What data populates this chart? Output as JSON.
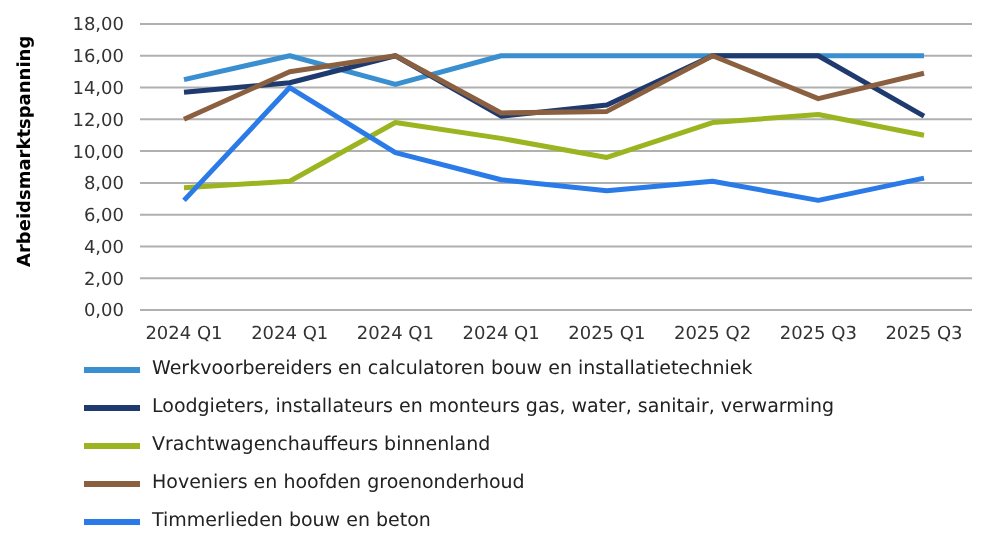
{
  "chart_data": {
    "type": "line",
    "ylabel": "Arbeidsmarktspanning",
    "categories": [
      "2024 Q1",
      "2024 Q1",
      "2024 Q1",
      "2024 Q1",
      "2025 Q1",
      "2025 Q2",
      "2025 Q3",
      "2025 Q3"
    ],
    "series": [
      {
        "name": "Werkvoorbereiders en calculatoren bouw en installatietechniek",
        "color": "#3a8fd0",
        "values": [
          14.5,
          16,
          14.2,
          16,
          16,
          16,
          16,
          16
        ]
      },
      {
        "name": "Loodgieters, installateurs en monteurs gas, water, sanitair, verwarming",
        "color": "#1f3a6e",
        "values": [
          13.7,
          14.3,
          16,
          12.2,
          12.9,
          16,
          16,
          12.2
        ]
      },
      {
        "name": "Vrachtwagenchauffeurs binnenland",
        "color": "#9ab520",
        "values": [
          7.7,
          8.1,
          11.8,
          10.8,
          9.6,
          11.8,
          12.3,
          11
        ]
      },
      {
        "name": "Hoveniers en hoofden groenonderhoud",
        "color": "#8b6040",
        "values": [
          12,
          15,
          16,
          12.4,
          12.5,
          16,
          13.3,
          14.9
        ]
      },
      {
        "name": "Timmerlieden bouw en beton",
        "color": "#2a7ae8",
        "values": [
          6.9,
          14,
          9.9,
          8.2,
          7.5,
          8.1,
          6.9,
          8.3
        ]
      }
    ],
    "ylim": [
      0,
      18
    ],
    "yticks": [
      {
        "value": 0,
        "label": "0,00"
      },
      {
        "value": 2,
        "label": "2,00"
      },
      {
        "value": 4,
        "label": "4,00"
      },
      {
        "value": 6,
        "label": "6,00"
      },
      {
        "value": 8,
        "label": "8,00"
      },
      {
        "value": 10,
        "label": "10,00"
      },
      {
        "value": 12,
        "label": "12,00"
      },
      {
        "value": 14,
        "label": "14,00"
      },
      {
        "value": 16,
        "label": "16,00"
      },
      {
        "value": 18,
        "label": "18,00"
      }
    ],
    "grid": "y",
    "legend": "bottom",
    "marker": "none",
    "line_style": "solid"
  }
}
